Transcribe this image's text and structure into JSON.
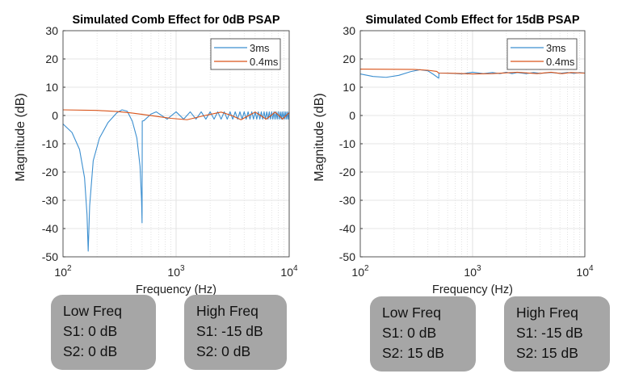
{
  "chart_data": [
    {
      "type": "line",
      "title": "Simulated Comb Effect for 0dB PSAP",
      "xlabel": "Frequency (Hz)",
      "ylabel": "Magnitude  (dB)",
      "xscale": "log",
      "xlim": [
        100,
        10000
      ],
      "ylim": [
        -50,
        30
      ],
      "xticks": [
        {
          "base": "10",
          "exp": "2",
          "value": 100
        },
        {
          "base": "10",
          "exp": "3",
          "value": 1000
        },
        {
          "base": "10",
          "exp": "4",
          "value": 10000
        }
      ],
      "yticks": [
        30,
        20,
        10,
        0,
        -10,
        -20,
        -30,
        -40,
        -50
      ],
      "grid": true,
      "legend": "top-right",
      "series": [
        {
          "name": "3ms",
          "color": "#3c8fd0",
          "points": [
            [
              100,
              -3
            ],
            [
              120,
              -6
            ],
            [
              140,
              -12
            ],
            [
              155,
              -22
            ],
            [
              163,
              -35
            ],
            [
              167,
              -48
            ],
            [
              172,
              -32
            ],
            [
              185,
              -16
            ],
            [
              210,
              -8
            ],
            [
              250,
              -2.5
            ],
            [
              300,
              1
            ],
            [
              333,
              2
            ],
            [
              370,
              1.5
            ],
            [
              410,
              -2
            ],
            [
              450,
              -8
            ],
            [
              480,
              -18
            ],
            [
              495,
              -30
            ],
            [
              500,
              -38
            ],
            [
              502,
              -2
            ],
            [
              520,
              -1.8
            ],
            [
              600,
              0.5
            ],
            [
              667,
              1.3
            ],
            [
              833,
              -1.3
            ],
            [
              1000,
              1.3
            ],
            [
              1167,
              -1.3
            ],
            [
              1333,
              1.3
            ],
            [
              1500,
              -1.3
            ],
            [
              1667,
              1.3
            ],
            [
              1833,
              -1.3
            ],
            [
              2000,
              1.3
            ],
            [
              2167,
              -1.3
            ],
            [
              2333,
              1.3
            ],
            [
              2500,
              -1.3
            ],
            [
              2667,
              1.3
            ],
            [
              2833,
              -1.3
            ],
            [
              3000,
              1.3
            ],
            [
              3167,
              -1.3
            ],
            [
              3333,
              1.3
            ],
            [
              3500,
              -1.3
            ],
            [
              3667,
              1.3
            ],
            [
              3833,
              -1.3
            ],
            [
              4000,
              1.3
            ],
            [
              4167,
              -1.3
            ],
            [
              4333,
              1.3
            ],
            [
              4500,
              -1.3
            ],
            [
              4667,
              1.3
            ],
            [
              4833,
              -1.3
            ],
            [
              5000,
              1.3
            ],
            [
              5167,
              -1.3
            ],
            [
              5333,
              1.3
            ],
            [
              5500,
              -1.3
            ],
            [
              5667,
              1.3
            ],
            [
              5833,
              -1.3
            ],
            [
              6000,
              1.3
            ],
            [
              6167,
              -1.3
            ],
            [
              6333,
              1.3
            ],
            [
              6500,
              -1.3
            ],
            [
              6667,
              1.3
            ],
            [
              6833,
              -1.3
            ],
            [
              7000,
              1.3
            ],
            [
              7167,
              -1.3
            ],
            [
              7333,
              1.3
            ],
            [
              7500,
              -1.3
            ],
            [
              7667,
              1.3
            ],
            [
              7833,
              -1.3
            ],
            [
              8000,
              1.3
            ],
            [
              8167,
              -1.3
            ],
            [
              8333,
              1.3
            ],
            [
              8500,
              -1.3
            ],
            [
              8667,
              1.3
            ],
            [
              8833,
              -1.3
            ],
            [
              9000,
              1.3
            ],
            [
              9167,
              -1.3
            ],
            [
              9333,
              1.3
            ],
            [
              9500,
              -1.3
            ],
            [
              9667,
              1.3
            ],
            [
              9833,
              -1.3
            ],
            [
              10000,
              1.3
            ]
          ]
        },
        {
          "name": "0.4ms",
          "color": "#d95319",
          "points": [
            [
              100,
              2
            ],
            [
              200,
              1.8
            ],
            [
              300,
              1.4
            ],
            [
              400,
              0.9
            ],
            [
              500,
              0.4
            ],
            [
              700,
              -0.4
            ],
            [
              900,
              -1
            ],
            [
              1250,
              -1.5
            ],
            [
              1800,
              0
            ],
            [
              2500,
              1.2
            ],
            [
              3100,
              0
            ],
            [
              3750,
              -1.5
            ],
            [
              4400,
              0
            ],
            [
              5000,
              1.2
            ],
            [
              5600,
              0
            ],
            [
              6250,
              -1.3
            ],
            [
              6900,
              0
            ],
            [
              7500,
              1.2
            ],
            [
              8100,
              0
            ],
            [
              8750,
              -1.3
            ],
            [
              9400,
              0
            ],
            [
              10000,
              1
            ]
          ]
        }
      ]
    },
    {
      "type": "line",
      "title": "Simulated Comb Effect for 15dB PSAP",
      "xlabel": "Frequency (Hz)",
      "ylabel": "Magnitude  (dB)",
      "xscale": "log",
      "xlim": [
        100,
        10000
      ],
      "ylim": [
        -50,
        30
      ],
      "xticks": [
        {
          "base": "10",
          "exp": "2",
          "value": 100
        },
        {
          "base": "10",
          "exp": "3",
          "value": 1000
        },
        {
          "base": "10",
          "exp": "4",
          "value": 10000
        }
      ],
      "yticks": [
        30,
        20,
        10,
        0,
        -10,
        -20,
        -30,
        -40,
        -50
      ],
      "grid": true,
      "legend": "top-right",
      "series": [
        {
          "name": "3ms",
          "color": "#3c8fd0",
          "points": [
            [
              100,
              14.7
            ],
            [
              130,
              13.8
            ],
            [
              170,
              13.5
            ],
            [
              220,
              14.2
            ],
            [
              280,
              15.5
            ],
            [
              340,
              16.2
            ],
            [
              400,
              15.8
            ],
            [
              450,
              14.5
            ],
            [
              495,
              13.3
            ],
            [
              500,
              13.2
            ],
            [
              502,
              15
            ],
            [
              600,
              15
            ],
            [
              800,
              14.7
            ],
            [
              1000,
              15.3
            ],
            [
              1250,
              14.8
            ],
            [
              1500,
              15.2
            ],
            [
              1750,
              14.8
            ],
            [
              2000,
              15.3
            ],
            [
              2250,
              14.8
            ],
            [
              2500,
              15.2
            ],
            [
              3000,
              14.8
            ],
            [
              3500,
              15.2
            ],
            [
              4000,
              14.9
            ],
            [
              5000,
              15.2
            ],
            [
              6000,
              14.9
            ],
            [
              7000,
              15.2
            ],
            [
              8000,
              14.9
            ],
            [
              9000,
              15.2
            ],
            [
              10000,
              15
            ]
          ]
        },
        {
          "name": "0.4ms",
          "color": "#d95319",
          "points": [
            [
              100,
              16.4
            ],
            [
              300,
              16.3
            ],
            [
              400,
              16
            ],
            [
              480,
              15.6
            ],
            [
              500,
              15
            ],
            [
              700,
              14.9
            ],
            [
              1000,
              14.7
            ],
            [
              1500,
              14.8
            ],
            [
              2500,
              15.3
            ],
            [
              3750,
              14.8
            ],
            [
              5000,
              15.3
            ],
            [
              6250,
              14.8
            ],
            [
              7500,
              15.2
            ],
            [
              10000,
              15
            ]
          ]
        }
      ]
    }
  ],
  "annotations": [
    {
      "lines": [
        "Low Freq",
        "S1: 0 dB",
        "S2: 0 dB"
      ]
    },
    {
      "lines": [
        "High Freq",
        "S1: -15 dB",
        "S2: 0 dB"
      ]
    },
    {
      "lines": [
        "Low Freq",
        "S1: 0 dB",
        "S2: 15 dB"
      ]
    },
    {
      "lines": [
        "High Freq",
        "S1: -15 dB",
        "S2: 15 dB"
      ]
    }
  ]
}
